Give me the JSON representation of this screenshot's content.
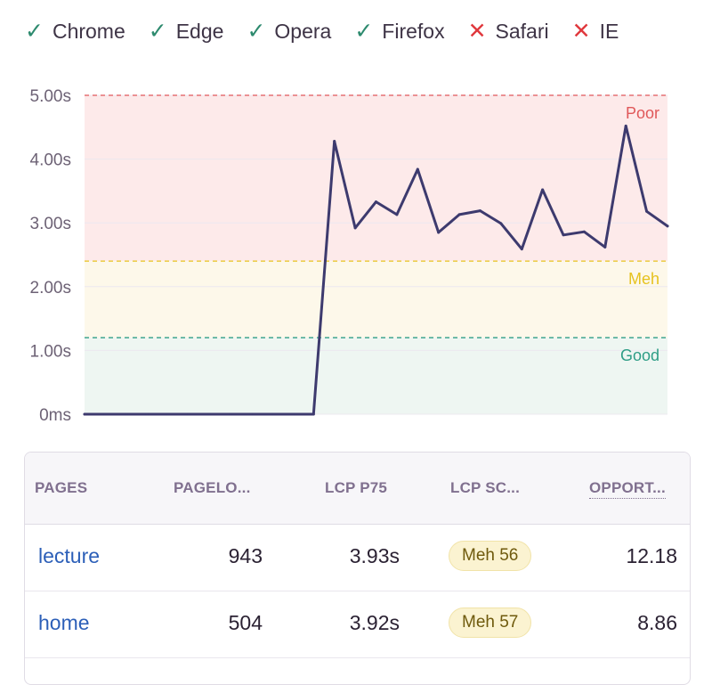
{
  "browsers": [
    {
      "name": "Chrome",
      "supported": true
    },
    {
      "name": "Edge",
      "supported": true
    },
    {
      "name": "Opera",
      "supported": true
    },
    {
      "name": "Firefox",
      "supported": true
    },
    {
      "name": "Safari",
      "supported": false
    },
    {
      "name": "IE",
      "supported": false
    }
  ],
  "chart_data": {
    "type": "line",
    "title": "",
    "xlabel": "",
    "ylabel": "",
    "ylim": [
      0,
      5
    ],
    "y_ticks": [
      "0ms",
      "1.00s",
      "2.00s",
      "3.00s",
      "4.00s",
      "5.00s"
    ],
    "grid": true,
    "thresholds": [
      {
        "label": "Good",
        "value": 1.2,
        "color": "#2e9d86",
        "fill": "#eef6f2"
      },
      {
        "label": "Meh",
        "value": 2.4,
        "color": "#e6c21f",
        "fill": "#fdf8ea"
      },
      {
        "label": "Poor",
        "value": 5.0,
        "color": "#e0585a",
        "fill": "#fdeaea"
      }
    ],
    "series": [
      {
        "color": "#3d3a6e",
        "x": [
          0,
          1,
          2,
          3,
          4,
          5,
          6,
          7,
          8,
          9,
          10,
          11,
          12,
          13,
          14,
          15,
          16,
          17,
          18,
          19,
          20,
          21,
          22,
          23,
          24,
          25,
          26,
          27,
          28
        ],
        "values": [
          0,
          0,
          0,
          0,
          0,
          0,
          0,
          0,
          0,
          0,
          0,
          0,
          4.28,
          2.92,
          3.33,
          3.13,
          3.84,
          2.85,
          3.13,
          3.19,
          2.99,
          2.59,
          3.52,
          2.81,
          2.86,
          2.62,
          4.52,
          3.18,
          2.95
        ]
      }
    ]
  },
  "table": {
    "headers": [
      "PAGES",
      "PAGELO...",
      "LCP P75",
      "LCP SC...",
      "OPPORT..."
    ],
    "rows": [
      {
        "page": "lecture",
        "pageloads": "943",
        "lcp_p75": "3.93s",
        "lcp_score": "Meh 56",
        "opportunity": "12.18"
      },
      {
        "page": "home",
        "pageloads": "504",
        "lcp_p75": "3.92s",
        "lcp_score": "Meh 57",
        "opportunity": "8.86"
      }
    ]
  }
}
